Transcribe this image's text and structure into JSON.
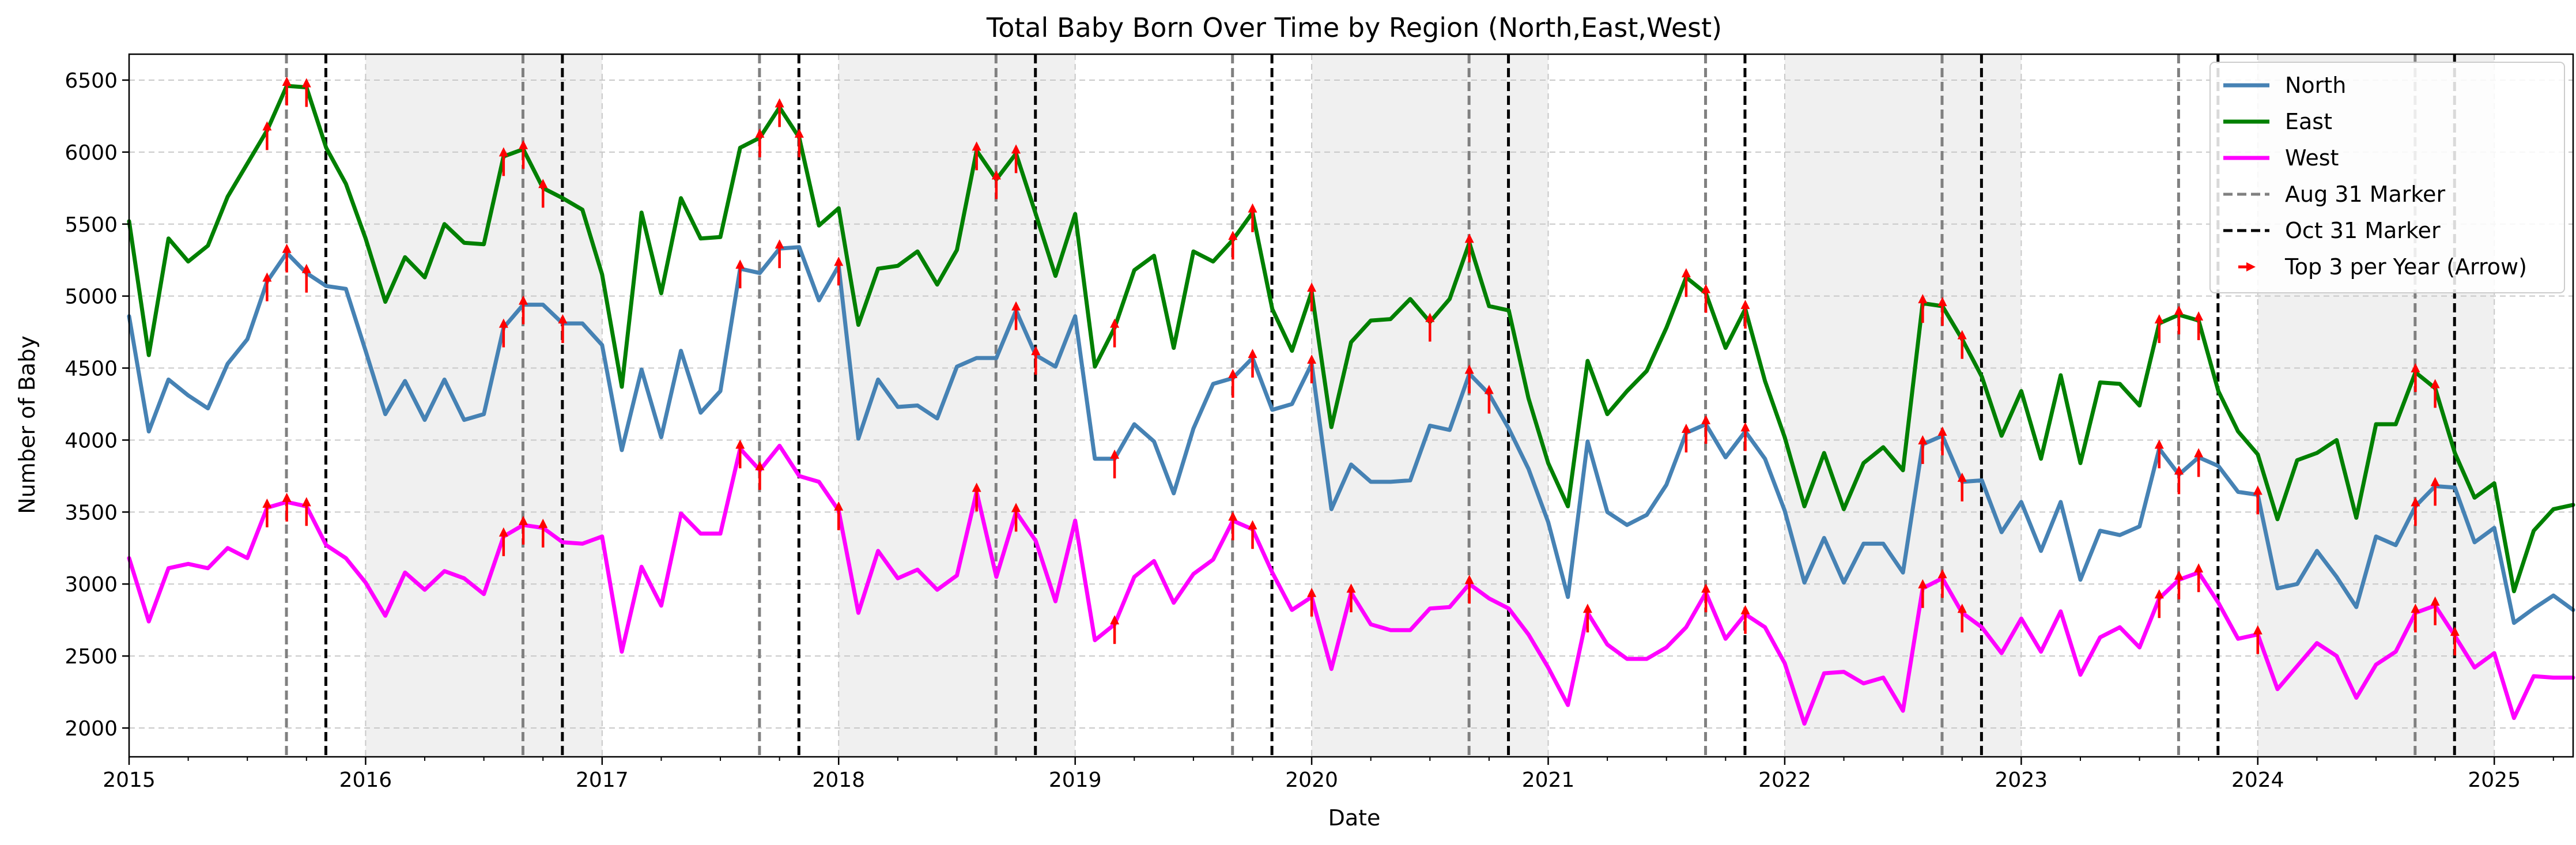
{
  "chart_data": {
    "type": "line",
    "title": "Total Baby Born Over Time by Region (North,East,West)",
    "xlabel": "Date",
    "ylabel": "Number of Baby",
    "xlim": [
      "2015-01-01",
      "2025-05-01"
    ],
    "ylim": [
      1800,
      6680
    ],
    "x_ticks": [
      "2015",
      "2016",
      "2017",
      "2018",
      "2019",
      "2020",
      "2021",
      "2022",
      "2023",
      "2024",
      "2025"
    ],
    "y_ticks": [
      2000,
      2500,
      3000,
      3500,
      4000,
      4500,
      5000,
      5500,
      6000,
      6500
    ],
    "grid": true,
    "legend_position": "top-right",
    "shaded_years": [
      2016,
      2018,
      2020,
      2022,
      2024
    ],
    "shade_color": "#f0f0f0",
    "aug31_markers": [
      "2015-08-31",
      "2016-08-31",
      "2017-08-31",
      "2018-08-31",
      "2019-08-31",
      "2020-08-31",
      "2021-08-31",
      "2022-08-31",
      "2023-08-31",
      "2024-08-31"
    ],
    "oct31_markers": [
      "2015-10-31",
      "2016-10-31",
      "2017-10-31",
      "2018-10-31",
      "2019-10-31",
      "2020-10-31",
      "2021-10-31",
      "2022-10-31",
      "2023-10-31",
      "2024-10-31"
    ],
    "dates": [
      "2015-01",
      "2015-02",
      "2015-03",
      "2015-04",
      "2015-05",
      "2015-06",
      "2015-07",
      "2015-08",
      "2015-09",
      "2015-10",
      "2015-11",
      "2015-12",
      "2016-01",
      "2016-02",
      "2016-03",
      "2016-04",
      "2016-05",
      "2016-06",
      "2016-07",
      "2016-08",
      "2016-09",
      "2016-10",
      "2016-11",
      "2016-12",
      "2017-01",
      "2017-02",
      "2017-03",
      "2017-04",
      "2017-05",
      "2017-06",
      "2017-07",
      "2017-08",
      "2017-09",
      "2017-10",
      "2017-11",
      "2017-12",
      "2018-01",
      "2018-02",
      "2018-03",
      "2018-04",
      "2018-05",
      "2018-06",
      "2018-07",
      "2018-08",
      "2018-09",
      "2018-10",
      "2018-11",
      "2018-12",
      "2019-01",
      "2019-02",
      "2019-03",
      "2019-04",
      "2019-05",
      "2019-06",
      "2019-07",
      "2019-08",
      "2019-09",
      "2019-10",
      "2019-11",
      "2019-12",
      "2020-01",
      "2020-02",
      "2020-03",
      "2020-04",
      "2020-05",
      "2020-06",
      "2020-07",
      "2020-08",
      "2020-09",
      "2020-10",
      "2020-11",
      "2020-12",
      "2021-01",
      "2021-02",
      "2021-03",
      "2021-04",
      "2021-05",
      "2021-06",
      "2021-07",
      "2021-08",
      "2021-09",
      "2021-10",
      "2021-11",
      "2021-12",
      "2022-01",
      "2022-02",
      "2022-03",
      "2022-04",
      "2022-05",
      "2022-06",
      "2022-07",
      "2022-08",
      "2022-09",
      "2022-10",
      "2022-11",
      "2022-12",
      "2023-01",
      "2023-02",
      "2023-03",
      "2023-04",
      "2023-05",
      "2023-06",
      "2023-07",
      "2023-08",
      "2023-09",
      "2023-10",
      "2023-11",
      "2023-12",
      "2024-01",
      "2024-02",
      "2024-03",
      "2024-04",
      "2024-05",
      "2024-06",
      "2024-07",
      "2024-08",
      "2024-09",
      "2024-10",
      "2024-11",
      "2024-12",
      "2025-01",
      "2025-02",
      "2025-03",
      "2025-04",
      "2025-05"
    ],
    "series": [
      {
        "name": "North",
        "color": "#4682b4",
        "values": [
          4860,
          4060,
          4420,
          4310,
          4220,
          4530,
          4700,
          5100,
          5300,
          5160,
          5070,
          5050,
          4620,
          4180,
          4410,
          4140,
          4420,
          4140,
          4180,
          4780,
          4940,
          4940,
          4810,
          4810,
          4660,
          3930,
          4490,
          4020,
          4620,
          4190,
          4340,
          5190,
          5160,
          5330,
          5340,
          4970,
          5210,
          4010,
          4420,
          4230,
          4240,
          4150,
          4510,
          4570,
          4570,
          4900,
          4590,
          4510,
          4860,
          3870,
          3870,
          4110,
          3990,
          3630,
          4080,
          4390,
          4430,
          4570,
          4210,
          4250,
          4530,
          3520,
          3830,
          3710,
          3710,
          3720,
          4100,
          4070,
          4460,
          4320,
          4080,
          3800,
          3430,
          2910,
          3990,
          3500,
          3410,
          3480,
          3690,
          4050,
          4110,
          3880,
          4060,
          3870,
          3510,
          3010,
          3320,
          3010,
          3280,
          3280,
          3080,
          3970,
          4030,
          3710,
          3720,
          3360,
          3570,
          3230,
          3570,
          3030,
          3370,
          3340,
          3400,
          3940,
          3760,
          3880,
          3820,
          3640,
          3620,
          2970,
          3000,
          3230,
          3050,
          2840,
          3330,
          3270,
          3540,
          3680,
          3670,
          3290,
          3390,
          2730,
          2830,
          2920,
          2820
        ]
      },
      {
        "name": "East",
        "color": "#008000",
        "values": [
          5520,
          4590,
          5400,
          5240,
          5350,
          5690,
          5920,
          6150,
          6460,
          6450,
          6030,
          5780,
          5400,
          4960,
          5270,
          5130,
          5500,
          5370,
          5360,
          5970,
          6020,
          5750,
          5680,
          5600,
          5150,
          4370,
          5580,
          5020,
          5680,
          5400,
          5410,
          6030,
          6100,
          6310,
          6100,
          5490,
          5610,
          4800,
          5190,
          5210,
          5310,
          5080,
          5320,
          6010,
          5810,
          5990,
          5570,
          5140,
          5570,
          4510,
          4780,
          5180,
          5280,
          4640,
          5310,
          5240,
          5390,
          5580,
          4910,
          4620,
          5030,
          4090,
          4680,
          4830,
          4840,
          4980,
          4820,
          4980,
          5370,
          4930,
          4900,
          4290,
          3840,
          3540,
          4550,
          4180,
          4340,
          4480,
          4780,
          5130,
          5020,
          4640,
          4910,
          4410,
          4020,
          3540,
          3910,
          3520,
          3840,
          3950,
          3790,
          4950,
          4930,
          4700,
          4440,
          4030,
          4340,
          3870,
          4450,
          3840,
          4400,
          4390,
          4240,
          4810,
          4870,
          4830,
          4340,
          4060,
          3900,
          3450,
          3860,
          3910,
          4000,
          3460,
          4110,
          4110,
          4470,
          4360,
          3910,
          3600,
          3700,
          2950,
          3370,
          3520,
          3550
        ]
      },
      {
        "name": "West",
        "color": "#ff00ff",
        "values": [
          3180,
          2740,
          3110,
          3140,
          3110,
          3250,
          3180,
          3530,
          3570,
          3540,
          3270,
          3180,
          3010,
          2780,
          3080,
          2960,
          3090,
          3040,
          2930,
          3330,
          3410,
          3390,
          3290,
          3280,
          3330,
          2530,
          3120,
          2850,
          3490,
          3350,
          3350,
          3940,
          3790,
          3960,
          3750,
          3710,
          3510,
          2800,
          3230,
          3040,
          3100,
          2960,
          3060,
          3640,
          3050,
          3500,
          3300,
          2880,
          3440,
          2610,
          2720,
          3050,
          3160,
          2870,
          3070,
          3170,
          3440,
          3380,
          3080,
          2820,
          2910,
          2410,
          2940,
          2720,
          2680,
          2680,
          2830,
          2840,
          3000,
          2900,
          2830,
          2650,
          2420,
          2160,
          2800,
          2580,
          2480,
          2480,
          2560,
          2700,
          2940,
          2620,
          2790,
          2700,
          2450,
          2030,
          2380,
          2390,
          2310,
          2350,
          2120,
          2970,
          3040,
          2800,
          2700,
          2520,
          2760,
          2530,
          2810,
          2370,
          2630,
          2700,
          2560,
          2900,
          3030,
          3080,
          2870,
          2620,
          2650,
          2270,
          2430,
          2590,
          2500,
          2210,
          2440,
          2530,
          2800,
          2850,
          2640,
          2420,
          2520,
          2070,
          2360,
          2350,
          2350
        ]
      }
    ],
    "arrows": {
      "North": [
        "2015-08",
        "2015-09",
        "2015-10",
        "2016-08",
        "2016-09",
        "2016-11",
        "2017-08",
        "2017-10",
        "2018-01",
        "2018-10",
        "2018-11",
        "2019-03",
        "2019-09",
        "2019-10",
        "2020-01",
        "2020-09",
        "2020-10",
        "2021-08",
        "2021-09",
        "2021-11",
        "2022-08",
        "2022-09",
        "2022-10",
        "2023-08",
        "2023-09",
        "2023-10",
        "2024-01",
        "2024-09",
        "2024-10"
      ],
      "East": [
        "2015-08",
        "2015-09",
        "2015-10",
        "2016-08",
        "2016-09",
        "2016-10",
        "2017-09",
        "2017-10",
        "2017-11",
        "2018-08",
        "2018-09",
        "2018-10",
        "2019-03",
        "2019-09",
        "2019-10",
        "2020-01",
        "2020-07",
        "2020-09",
        "2021-08",
        "2021-09",
        "2021-11",
        "2022-08",
        "2022-09",
        "2022-10",
        "2023-08",
        "2023-09",
        "2023-10",
        "2024-09",
        "2024-10"
      ],
      "West": [
        "2015-08",
        "2015-09",
        "2015-10",
        "2016-08",
        "2016-09",
        "2016-10",
        "2017-08",
        "2017-09",
        "2018-01",
        "2018-08",
        "2018-10",
        "2019-03",
        "2019-09",
        "2019-10",
        "2020-01",
        "2020-03",
        "2020-09",
        "2021-03",
        "2021-09",
        "2021-11",
        "2022-08",
        "2022-09",
        "2022-10",
        "2023-08",
        "2023-09",
        "2023-10",
        "2024-01",
        "2024-09",
        "2024-10",
        "2024-11"
      ]
    },
    "legend": {
      "north": "North",
      "east": "East",
      "west": "West",
      "aug": "Aug 31 Marker",
      "oct": "Oct 31 Marker",
      "arrow": "Top 3 per Year (Arrow)"
    }
  }
}
